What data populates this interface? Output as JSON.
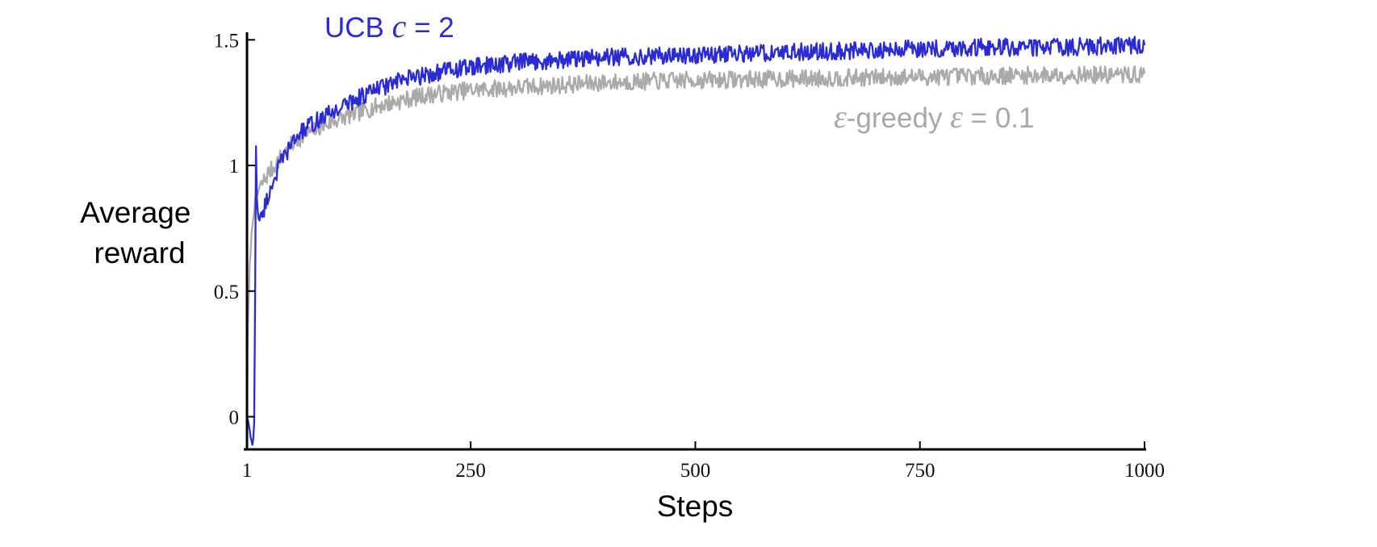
{
  "chart_data": {
    "type": "line",
    "xlabel": "Steps",
    "ylabel_lines": [
      "Average",
      "reward"
    ],
    "xlim": [
      1,
      1000
    ],
    "ylim": [
      -0.13,
      1.53
    ],
    "x_ticks": [
      1,
      250,
      500,
      750,
      1000
    ],
    "x_tick_labels": [
      "1",
      "250",
      "500",
      "750",
      "1000"
    ],
    "y_ticks": [
      0,
      0.5,
      1,
      1.5
    ],
    "y_tick_labels": [
      "0",
      "0.5",
      "1",
      "1.5"
    ],
    "grid": false,
    "legend": "inline labels",
    "series": [
      {
        "key": "egreedy",
        "name": "ε-greedy ε = 0.1",
        "label_parts": {
          "prefix": "ε",
          "mid": "-greedy  ",
          "symbol": "ε",
          "suffix": " = 0.1"
        },
        "color": "#aaaaaa",
        "noise_amplitude": 0.035,
        "x": [
          1,
          2,
          4,
          6,
          8,
          10,
          12,
          15,
          20,
          25,
          30,
          40,
          50,
          60,
          80,
          100,
          125,
          150,
          175,
          200,
          250,
          300,
          350,
          400,
          450,
          500,
          600,
          700,
          800,
          900,
          1000
        ],
        "values": [
          0.0,
          0.35,
          0.6,
          0.72,
          0.8,
          0.85,
          0.88,
          0.91,
          0.94,
          0.97,
          0.99,
          1.04,
          1.08,
          1.11,
          1.15,
          1.18,
          1.21,
          1.24,
          1.26,
          1.28,
          1.3,
          1.31,
          1.32,
          1.33,
          1.335,
          1.34,
          1.345,
          1.35,
          1.355,
          1.36,
          1.36
        ]
      },
      {
        "key": "ucb",
        "name": "UCB c = 2",
        "label_parts": {
          "prefix": "UCB  ",
          "symbol": "c",
          "suffix": " = 2"
        },
        "color": "#2b2bd6",
        "noise_amplitude": 0.035,
        "x": [
          1,
          3,
          5,
          7,
          9,
          10,
          11,
          12,
          13,
          15,
          18,
          20,
          25,
          30,
          40,
          50,
          60,
          80,
          100,
          125,
          150,
          175,
          200,
          225,
          250,
          300,
          350,
          400,
          500,
          600,
          700,
          800,
          900,
          1000
        ],
        "values": [
          0.0,
          -0.03,
          -0.08,
          -0.12,
          -0.03,
          0.45,
          1.08,
          0.88,
          0.82,
          0.78,
          0.8,
          0.83,
          0.88,
          0.94,
          1.02,
          1.08,
          1.13,
          1.18,
          1.22,
          1.27,
          1.31,
          1.34,
          1.36,
          1.38,
          1.39,
          1.41,
          1.42,
          1.43,
          1.44,
          1.45,
          1.46,
          1.47,
          1.47,
          1.48
        ]
      }
    ]
  }
}
